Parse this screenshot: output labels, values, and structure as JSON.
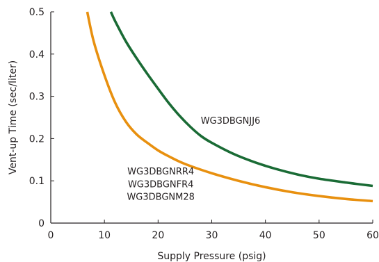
{
  "chart_data": {
    "type": "line",
    "title": "",
    "xlabel": "Supply Pressure (psig)",
    "ylabel": "Vent-up Time (sec/liter)",
    "xlim": [
      0,
      60
    ],
    "ylim": [
      0,
      0.5
    ],
    "xticks": [
      "0",
      "10",
      "20",
      "30",
      "40",
      "50",
      "60"
    ],
    "yticks": [
      "0",
      "0.1",
      "0.2",
      "0.3",
      "0.4",
      "0.5"
    ],
    "grid": false,
    "series": [
      {
        "name": "WG3DBGNJJ6",
        "color": "#1a6b35",
        "x": [
          11.2,
          12,
          14,
          16,
          18,
          20,
          22,
          24,
          26,
          28,
          30,
          34,
          38,
          42,
          46,
          50,
          55,
          60
        ],
        "y": [
          0.5,
          0.478,
          0.43,
          0.39,
          0.353,
          0.318,
          0.284,
          0.254,
          0.228,
          0.206,
          0.19,
          0.164,
          0.144,
          0.128,
          0.115,
          0.105,
          0.096,
          0.088
        ]
      },
      {
        "name": "WG3DBGNRR4 / WG3DBGNFR4 / WG3DBGNM28",
        "color": "#e8900f",
        "x": [
          6.8,
          8,
          10,
          12,
          14,
          16,
          18,
          20,
          22,
          25,
          30,
          35,
          40,
          45,
          50,
          55,
          60
        ],
        "y": [
          0.5,
          0.43,
          0.35,
          0.285,
          0.24,
          0.21,
          0.19,
          0.172,
          0.158,
          0.14,
          0.118,
          0.1,
          0.085,
          0.073,
          0.064,
          0.057,
          0.052
        ]
      }
    ],
    "annotations": [
      {
        "text": "WG3DBGNJJ6",
        "x": 33.5,
        "y": 0.235
      },
      {
        "text": "WG3DBGNRR4",
        "x": 20.5,
        "y": 0.115
      },
      {
        "text": "WG3DBGNFR4",
        "x": 20.5,
        "y": 0.085
      },
      {
        "text": "WG3DBGNM28",
        "x": 20.5,
        "y": 0.055
      }
    ]
  }
}
